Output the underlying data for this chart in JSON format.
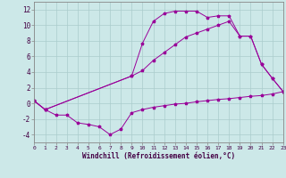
{
  "xlabel": "Windchill (Refroidissement éolien,°C)",
  "background_color": "#cce8e8",
  "grid_color": "#aacccc",
  "line_color": "#990099",
  "xlim": [
    0,
    23
  ],
  "ylim": [
    -5,
    13
  ],
  "yticks": [
    -4,
    -2,
    0,
    2,
    4,
    6,
    8,
    10,
    12
  ],
  "xticks": [
    0,
    1,
    2,
    3,
    4,
    5,
    6,
    7,
    8,
    9,
    10,
    11,
    12,
    13,
    14,
    15,
    16,
    17,
    18,
    19,
    20,
    21,
    22,
    23
  ],
  "line1_x": [
    0,
    1,
    2,
    3,
    4,
    5,
    6,
    7,
    8,
    9,
    10,
    11,
    12,
    13,
    14,
    15,
    16,
    17,
    18,
    19,
    20,
    21,
    22,
    23
  ],
  "line1_y": [
    0.3,
    -0.8,
    -1.5,
    -1.5,
    -2.5,
    -2.7,
    -3.0,
    -4.0,
    -3.3,
    -1.2,
    -0.8,
    -0.5,
    -0.3,
    -0.1,
    0.0,
    0.2,
    0.35,
    0.5,
    0.6,
    0.75,
    0.9,
    1.0,
    1.2,
    1.5
  ],
  "line2_x": [
    0,
    1,
    9,
    10,
    11,
    12,
    13,
    14,
    15,
    16,
    17,
    18,
    19,
    20,
    21,
    22,
    23
  ],
  "line2_y": [
    0.3,
    -0.8,
    3.5,
    7.7,
    10.5,
    11.5,
    11.8,
    11.8,
    11.8,
    11.0,
    11.2,
    11.2,
    8.6,
    8.6,
    5.0,
    3.2,
    1.5
  ],
  "line3_x": [
    0,
    1,
    9,
    10,
    11,
    12,
    13,
    14,
    15,
    16,
    17,
    18,
    19,
    20,
    21,
    22,
    23
  ],
  "line3_y": [
    0.3,
    -0.8,
    3.5,
    4.2,
    5.5,
    6.5,
    7.5,
    8.5,
    9.0,
    9.5,
    10.0,
    10.5,
    8.6,
    8.6,
    5.0,
    3.2,
    1.5
  ]
}
